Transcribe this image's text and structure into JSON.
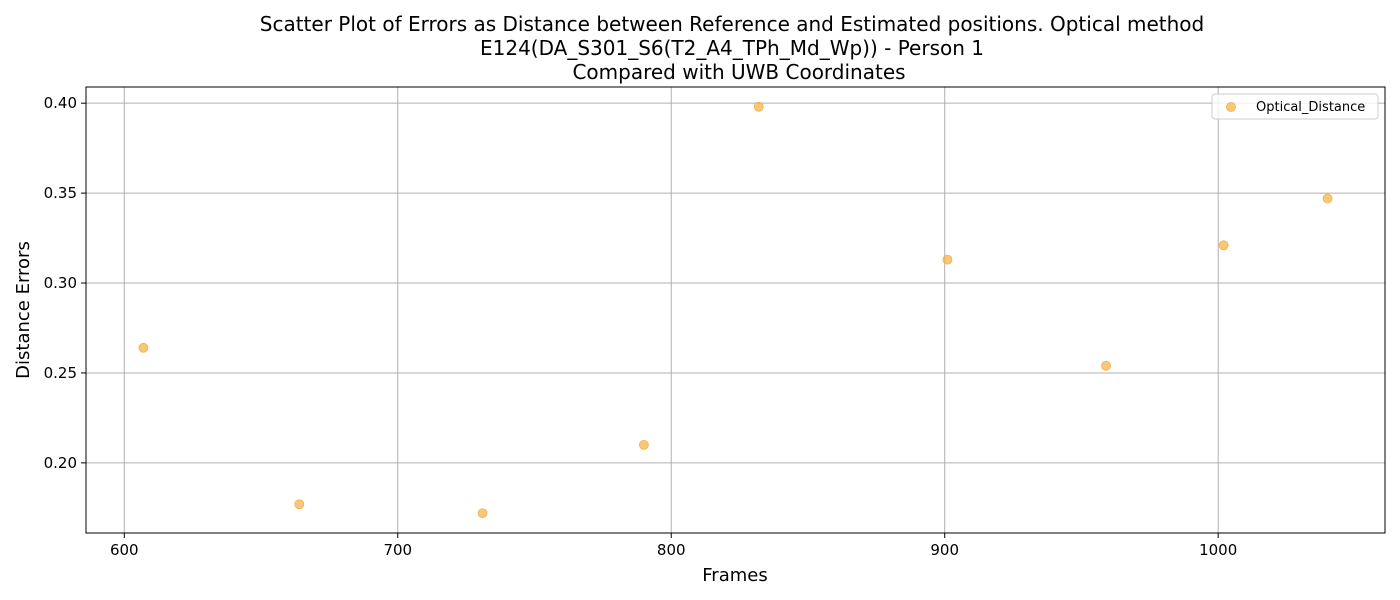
{
  "chart_data": {
    "type": "scatter",
    "title_lines": [
      "Scatter Plot of Errors as Distance between Reference and Estimated positions. Optical method",
      "E124(DA_S301_S6(T2_A4_TPh_Md_Wp)) - Person 1",
      "Compared with UWB Coordinates"
    ],
    "xlabel": "Frames",
    "ylabel": "Distance Errors",
    "xlim": [
      586,
      1061
    ],
    "ylim": [
      0.161,
      0.409
    ],
    "xticks": [
      600,
      700,
      800,
      900,
      1000
    ],
    "yticks": [
      0.2,
      0.25,
      0.3,
      0.35,
      0.4
    ],
    "xtick_labels": [
      "600",
      "700",
      "800",
      "900",
      "1000"
    ],
    "ytick_labels": [
      "0.20",
      "0.25",
      "0.30",
      "0.35",
      "0.40"
    ],
    "grid": true,
    "legend_position": "top-right",
    "series": [
      {
        "name": "Optical_Distance",
        "color": "#f5b041",
        "x": [
          607,
          664,
          731,
          790,
          832,
          901,
          959,
          1002,
          1040
        ],
        "y": [
          0.264,
          0.177,
          0.172,
          0.21,
          0.398,
          0.313,
          0.254,
          0.321,
          0.347
        ]
      }
    ]
  }
}
